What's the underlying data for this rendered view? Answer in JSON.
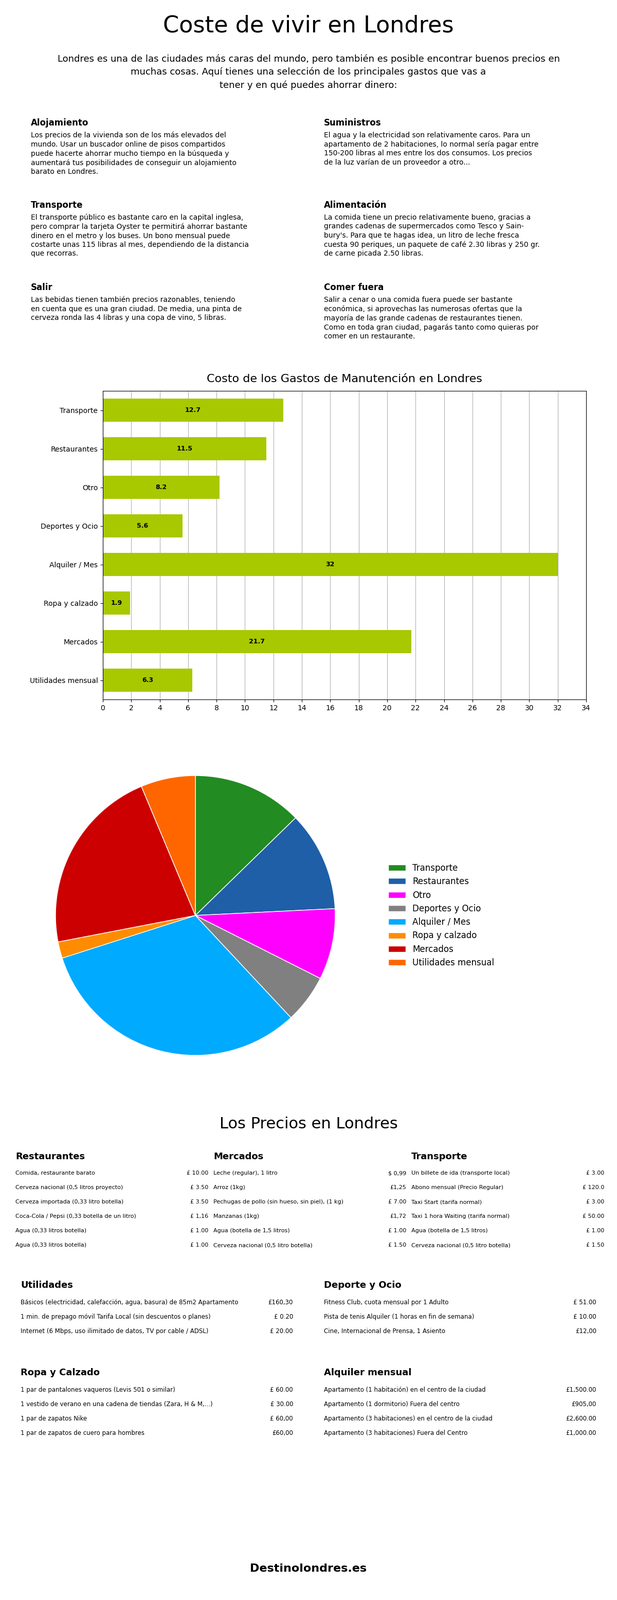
{
  "title": "Coste de vivir en Londres",
  "intro": "Londres es una de las ciudades más caras del mundo, pero también es posible encontrar buenos precios en\nmuchas cosas. Aquí tienes una selección de los principales gastos que vas a\ntener y en qué puedes ahorrar dinero:",
  "sections": [
    {
      "title": "Alojamiento",
      "text": "Los precios de la vivienda son de los más elevados del\nmundo. Usar un buscador online de pisos compartidos\npuede hacerte ahorrar mucho tiempo en la búsqueda y\naumentará tus posibilidades de conseguir un alojamiento\nbarato en Londres."
    },
    {
      "title": "Suministros",
      "text": "El agua y la electricidad son relativamente caros. Para un\napartamento de 2 habitaciones, lo normal sería pagar entre\n150-200 libras al mes entre los dos consumos. Los precios\nde la luz varían de un proveedor a otro..."
    },
    {
      "title": "Transporte",
      "text": "El transporte público es bastante caro en la capital inglesa,\npero comprar la tarjeta Oyster te permitirá ahorrar bastante\ndinero en el metro y los buses. Un bono mensual puede\ncostarte unas 115 libras al mes, dependiendo de la distancia\nque recorras."
    },
    {
      "title": "Alimentación",
      "text": "La comida tiene un precio relativamente bueno, gracias a\ngrandes cadenas de supermercados como Tesco y Sain-\nbury's. Para que te hagas idea, un litro de leche fresca\ncuesta 90 periques, un paquete de café 2.30 libras y 250 gr.\nde carne picada 2.50 libras."
    },
    {
      "title": "Salir",
      "text": "Las bebidas tienen también precios razonables, teniendo\nen cuenta que es una gran ciudad. De media, una pinta de\ncerveza ronda las 4 libras y una copa de vino, 5 libras."
    },
    {
      "title": "Comer fuera",
      "text": "Salir a cenar o una comida fuera puede ser bastante\neconómica, si aprovechas las numerosas ofertas que la\nmayoría de las grande cadenas de restaurantes tienen.\nComo en toda gran ciudad, pagarás tanto como quieras por\ncomer en un restaurante."
    }
  ],
  "chart_data": [
    {
      "type": "bar",
      "title": "Costo de los Gastos de Manutención en Londres",
      "orientation": "horizontal",
      "categories": [
        "Transporte",
        "Restaurantes",
        "Otro",
        "Deportes y Ocio",
        "Alquiler / Mes",
        "Ropa y calzado",
        "Mercados",
        "Utilidades mensual"
      ],
      "values": [
        12.7,
        11.5,
        8.2,
        5.6,
        32,
        1.9,
        21.7,
        6.3
      ],
      "color": "#a8c800",
      "xlim": [
        0,
        34
      ],
      "xticks": [
        0,
        2,
        4,
        6,
        8,
        10,
        12,
        14,
        16,
        18,
        20,
        22,
        24,
        26,
        28,
        30,
        32,
        34
      ],
      "grid": true,
      "data_labels": true
    },
    {
      "type": "pie",
      "categories": [
        "Transporte",
        "Restaurantes",
        "Otro",
        "Deportes y Ocio",
        "Alquiler / Mes",
        "Ropa y calzado",
        "Mercados",
        "Utilidades mensual"
      ],
      "values": [
        12.7,
        11.5,
        8.2,
        5.6,
        32,
        1.9,
        21.7,
        6.3
      ],
      "colors": [
        "#228B22",
        "#1e5fa8",
        "#ff00ff",
        "#808080",
        "#00aaff",
        "#ff8c00",
        "#cc0000",
        "#ff6600"
      ],
      "legend": "center left"
    }
  ],
  "tables_title": "Los Precios en Londres",
  "tables": [
    {
      "title": "Restaurantes",
      "rows": [
        [
          "Comida, restaurante barato",
          "£ 10.00"
        ],
        [
          "Cerveza nacional (0,5 litros proyecto)",
          "£ 3.50"
        ],
        [
          "Cerveza importada (0,33 litro botella)",
          "£ 3.50"
        ],
        [
          "Coca-Cola / Pepsi (0,33 botella de un litro)",
          "£ 1,16"
        ],
        [
          "Agua (0,33 litros botella)",
          "£ 1.00"
        ],
        [
          "Agua (0,33 litros botella)",
          "£ 1.00"
        ]
      ]
    },
    {
      "title": "Mercados",
      "rows": [
        [
          "Leche (regular), 1 litro",
          "$ 0,99"
        ],
        [
          "Arroz (1kg)",
          "£1,25"
        ],
        [
          "Pechugas de pollo (sin hueso, sin piel), (1 kg)",
          "£ 7.00"
        ],
        [
          "Manzanas (1kg)",
          "£1,72"
        ],
        [
          "Agua (botella de 1,5 litros)",
          "£ 1.00"
        ],
        [
          "Cerveza nacional (0,5 litro botella)",
          "£ 1.50"
        ]
      ]
    },
    {
      "title": "Transporte",
      "rows": [
        [
          "Un billete de ida (transporte local)",
          "£ 3.00"
        ],
        [
          "Abono mensual (Precio Regular)",
          "£ 120.0"
        ],
        [
          "Taxi Start (tarifa normal)",
          "£ 3.00"
        ],
        [
          "Taxi 1 hora Waiting (tarifa normal)",
          "£ 50.00"
        ],
        [
          "Agua (botella de 1,5 litros)",
          "£ 1.00"
        ],
        [
          "Cerveza nacional (0,5 litro botella)",
          "£ 1.50"
        ]
      ]
    },
    {
      "title": "Utilidades",
      "rows": [
        [
          "Básicos (electricidad, calefacción, agua, basura) de 85m2 Apartamento",
          "£160,30"
        ],
        [
          "1 min. de prepago móvil Tarifa Local (sin descuentos o planes)",
          "£ 0.20"
        ],
        [
          "Internet (6 Mbps, uso ilimitado de datos, TV por cable / ADSL)",
          "£ 20.00"
        ]
      ]
    },
    {
      "title": "Deporte y Ocio",
      "rows": [
        [
          "Fitness Club, cuota mensual por 1 Adulto",
          "£ 51.00"
        ],
        [
          "Pista de tenis Alquiler (1 horas en fin de semana)",
          "£ 10.00"
        ],
        [
          "Cine, Internacional de Prensa, 1 Asiento",
          "£12,00"
        ]
      ]
    },
    {
      "title": "Ropa y Calzado",
      "rows": [
        [
          "1 par de pantalones vaqueros (Levis 501 o similar)",
          "£ 60.00"
        ],
        [
          "1 vestido de verano en una cadena de tiendas (Zara, H & M,...)",
          "£ 30.00"
        ],
        [
          "1 par de zapatos Nike",
          "£ 60,00"
        ],
        [
          "1 par de zapatos de cuero para hombres",
          "£60,00"
        ]
      ]
    },
    {
      "title": "Alquiler mensual",
      "rows": [
        [
          "Apartamento (1 habitación) en el centro de la ciudad",
          "£1,500.00"
        ],
        [
          "Apartamento (1 dormitorio) Fuera del centro",
          "£905,00"
        ],
        [
          "Apartamento (3 habitaciones) en el centro de la ciudad",
          "£2,600.00"
        ],
        [
          "Apartamento (3 habitaciones) Fuera del Centro",
          "£1,000.00"
        ]
      ]
    }
  ],
  "footer": "Destinolondres.es"
}
